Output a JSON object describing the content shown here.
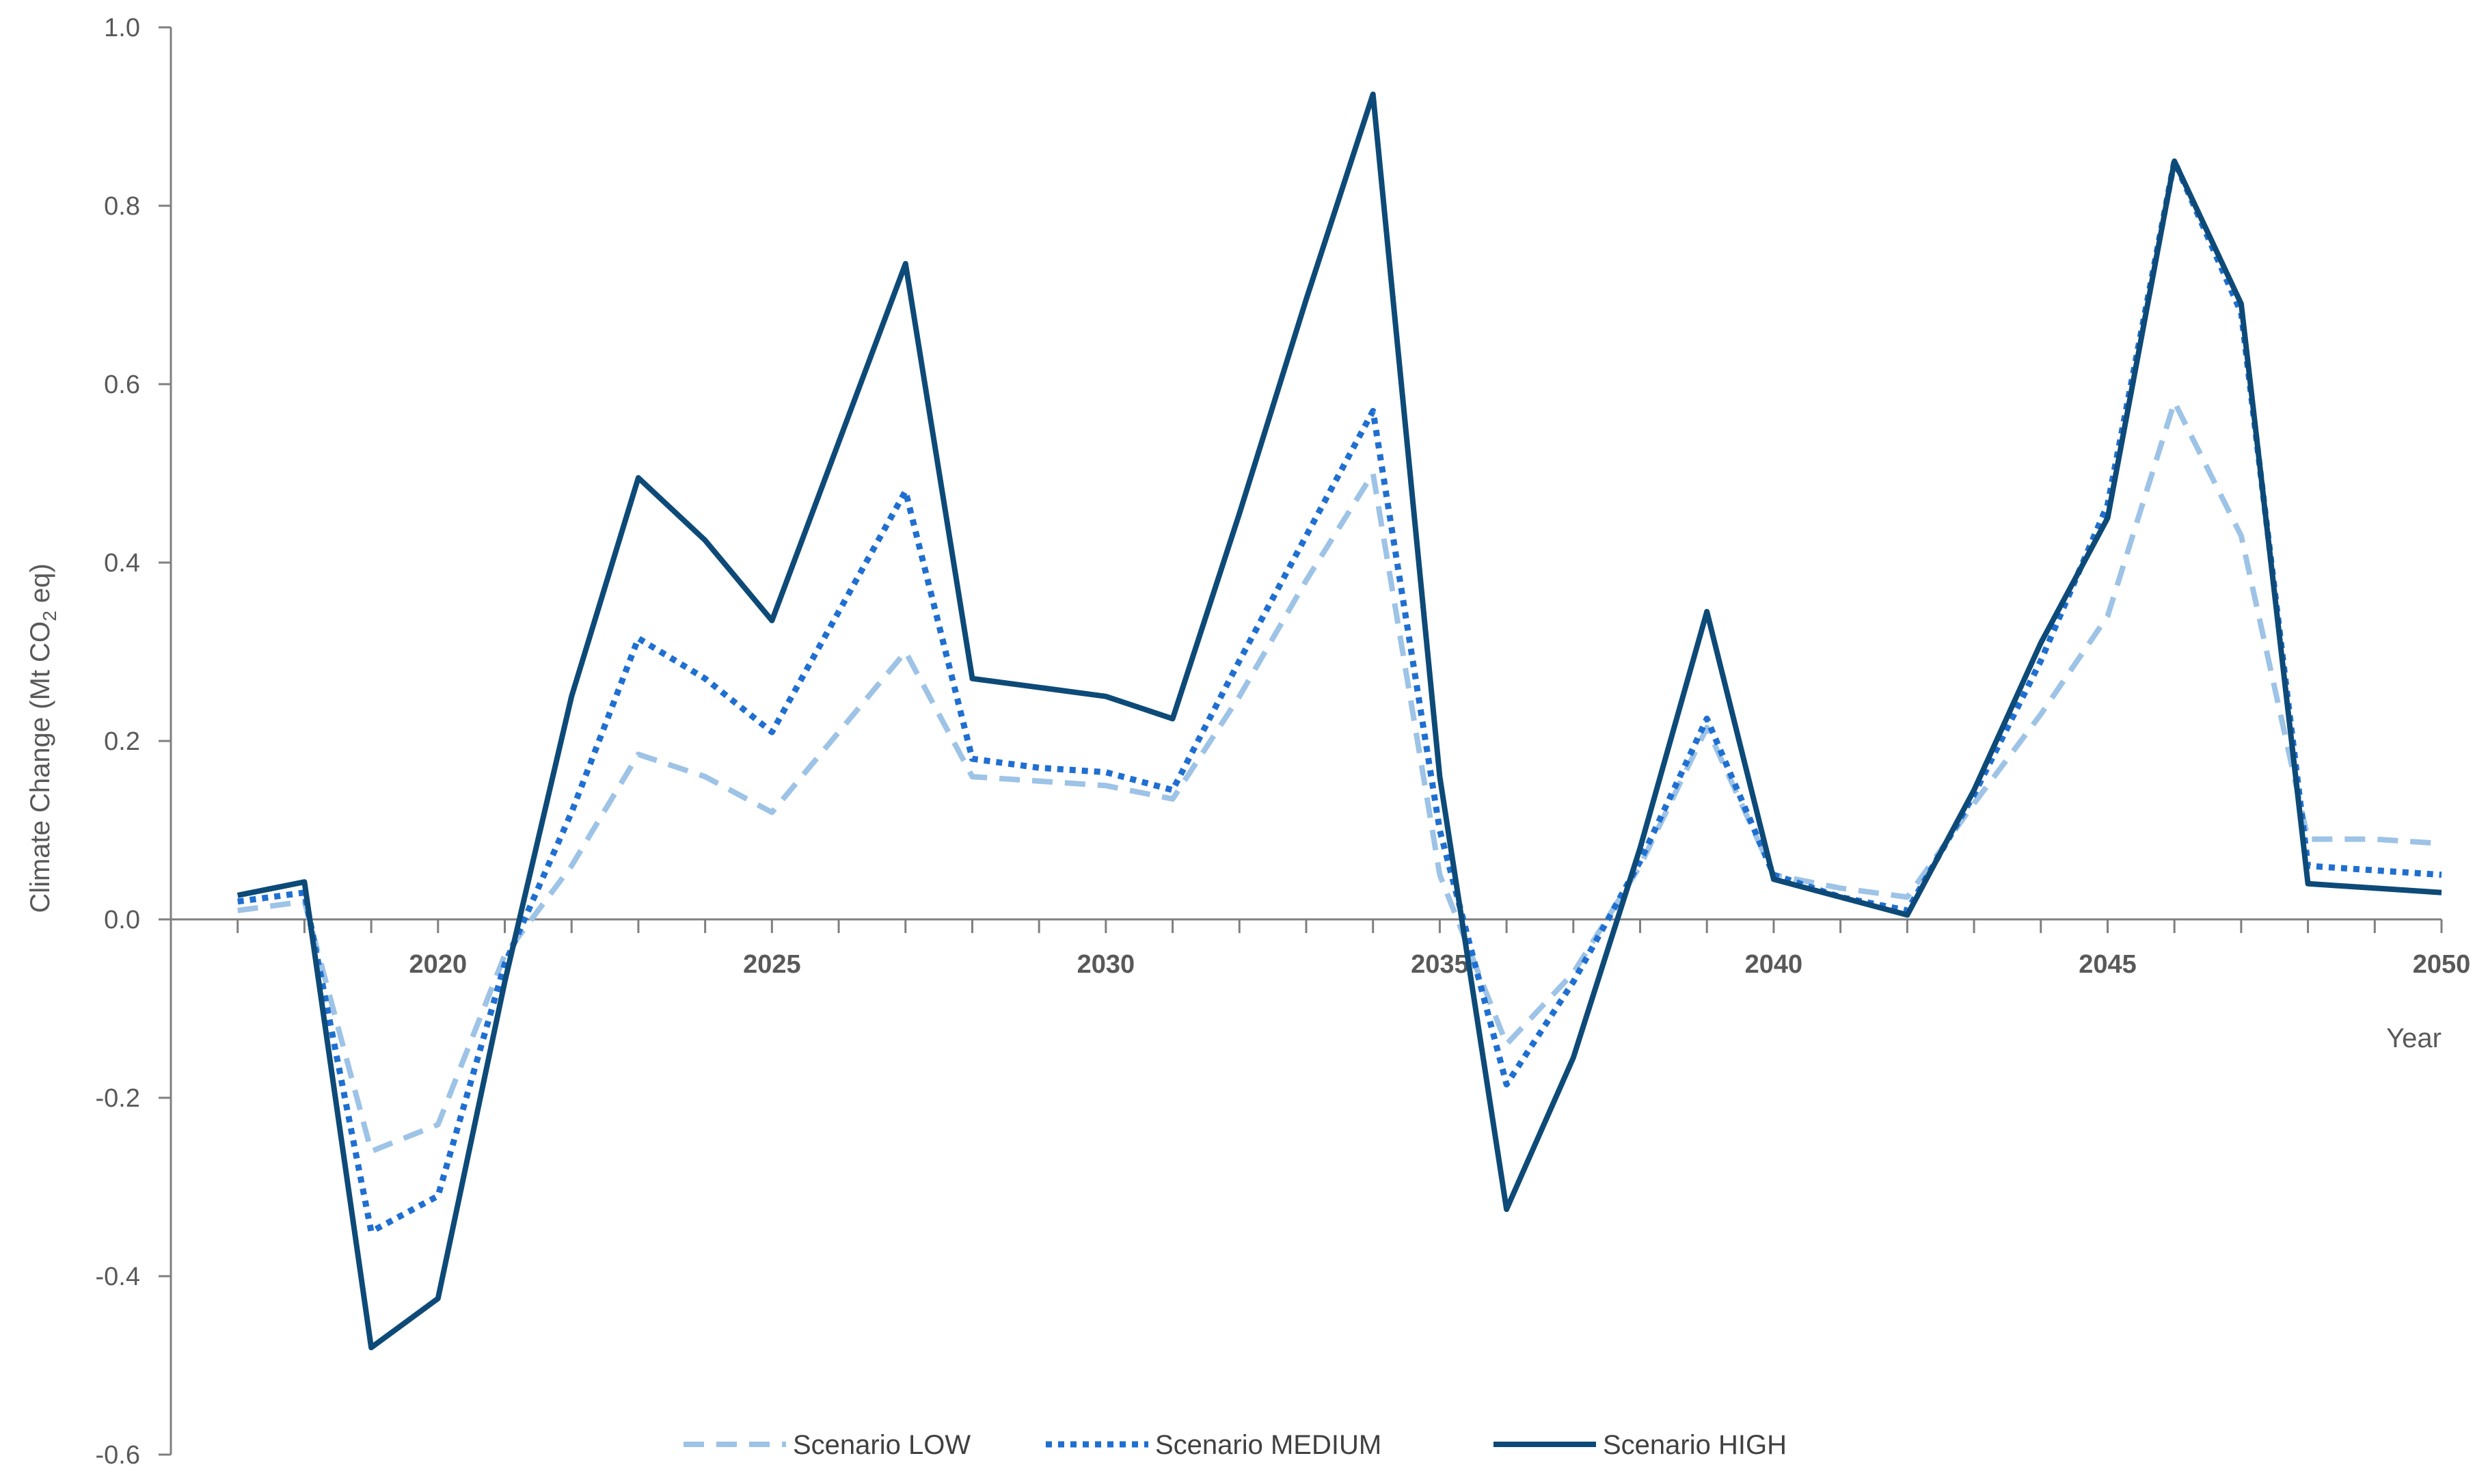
{
  "chart_data": {
    "type": "line",
    "xlabel": "Year",
    "ylabel_main": "Climate Change (Mt CO",
    "ylabel_sub": "2",
    "ylabel_end": " eq)",
    "ylim": [
      -0.6,
      1.0
    ],
    "yticks": [
      -0.6,
      -0.4,
      -0.2,
      0.0,
      0.2,
      0.4,
      0.6,
      0.8,
      1.0
    ],
    "ytick_labels": [
      "-0.6",
      "-0.4",
      "-0.2",
      "0.0",
      "0.2",
      "0.4",
      "0.6",
      "0.8",
      "1.0"
    ],
    "xlim": [
      2016,
      2050
    ],
    "xticks": [
      2020,
      2025,
      2030,
      2035,
      2040,
      2045,
      2050
    ],
    "xtick_labels": [
      "2020",
      "2025",
      "2030",
      "2035",
      "2040",
      "2045",
      "2050"
    ],
    "x": [
      2017,
      2018,
      2019,
      2020,
      2021,
      2022,
      2023,
      2024,
      2025,
      2026,
      2027,
      2028,
      2029,
      2030,
      2031,
      2032,
      2033,
      2034,
      2035,
      2036,
      2037,
      2038,
      2039,
      2040,
      2041,
      2042,
      2043,
      2044,
      2045,
      2046,
      2047,
      2048,
      2049,
      2050
    ],
    "series": [
      {
        "name": "Scenario LOW",
        "color": "#9dc3e6",
        "dash": "long-dash",
        "values": [
          0.01,
          0.02,
          -0.26,
          -0.23,
          -0.04,
          0.06,
          0.185,
          0.16,
          0.12,
          0.21,
          0.3,
          0.16,
          0.155,
          0.15,
          0.135,
          0.25,
          0.38,
          0.5,
          0.05,
          -0.14,
          -0.06,
          0.06,
          0.215,
          0.05,
          0.035,
          0.025,
          0.13,
          0.23,
          0.34,
          0.58,
          0.43,
          0.09,
          0.09,
          0.085
        ]
      },
      {
        "name": "Scenario MEDIUM",
        "color": "#1f6fd1",
        "dash": "dotted",
        "values": [
          0.02,
          0.03,
          -0.35,
          -0.31,
          -0.05,
          0.12,
          0.315,
          0.27,
          0.21,
          0.345,
          0.48,
          0.18,
          0.17,
          0.165,
          0.145,
          0.29,
          0.43,
          0.57,
          0.1,
          -0.185,
          -0.07,
          0.065,
          0.225,
          0.05,
          0.025,
          0.01,
          0.14,
          0.29,
          0.465,
          0.85,
          0.68,
          0.06,
          0.055,
          0.05
        ]
      },
      {
        "name": "Scenario HIGH",
        "color": "#0d4a78",
        "dash": "solid",
        "values": [
          0.027,
          0.042,
          -0.48,
          -0.425,
          -0.07,
          0.25,
          0.495,
          0.425,
          0.335,
          0.535,
          0.735,
          0.27,
          0.26,
          0.25,
          0.225,
          0.455,
          0.695,
          0.925,
          0.16,
          -0.325,
          -0.155,
          0.08,
          0.345,
          0.045,
          0.025,
          0.005,
          0.145,
          0.31,
          0.45,
          0.85,
          0.69,
          0.04,
          0.035,
          0.03
        ]
      }
    ],
    "legend_position": "bottom"
  }
}
